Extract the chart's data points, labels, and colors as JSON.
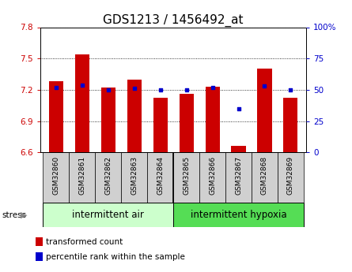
{
  "title": "GDS1213 / 1456492_at",
  "samples": [
    "GSM32860",
    "GSM32861",
    "GSM32862",
    "GSM32863",
    "GSM32864",
    "GSM32865",
    "GSM32866",
    "GSM32867",
    "GSM32868",
    "GSM32869"
  ],
  "bar_values": [
    7.28,
    7.54,
    7.22,
    7.3,
    7.12,
    7.16,
    7.23,
    6.66,
    7.4,
    7.12
  ],
  "percentile_values": [
    52,
    54,
    50,
    51,
    50,
    50,
    52,
    35,
    53,
    50
  ],
  "ylim_left": [
    6.6,
    7.8
  ],
  "ylim_right": [
    0,
    100
  ],
  "yticks_left": [
    6.6,
    6.9,
    7.2,
    7.5,
    7.8
  ],
  "yticks_right": [
    0,
    25,
    50,
    75,
    100
  ],
  "bar_color": "#cc0000",
  "dot_color": "#0000cc",
  "group1_label": "intermittent air",
  "group2_label": "intermittent hypoxia",
  "group1_color": "#ccffcc",
  "group2_color": "#55dd55",
  "stress_label": "stress",
  "title_fontsize": 11,
  "tick_fontsize": 7.5,
  "label_fontsize": 6.5,
  "group_fontsize": 8.5,
  "legend_fontsize": 7.5,
  "bar_width": 0.55,
  "base_value": 6.6,
  "n_group1": 5,
  "n_group2": 5
}
